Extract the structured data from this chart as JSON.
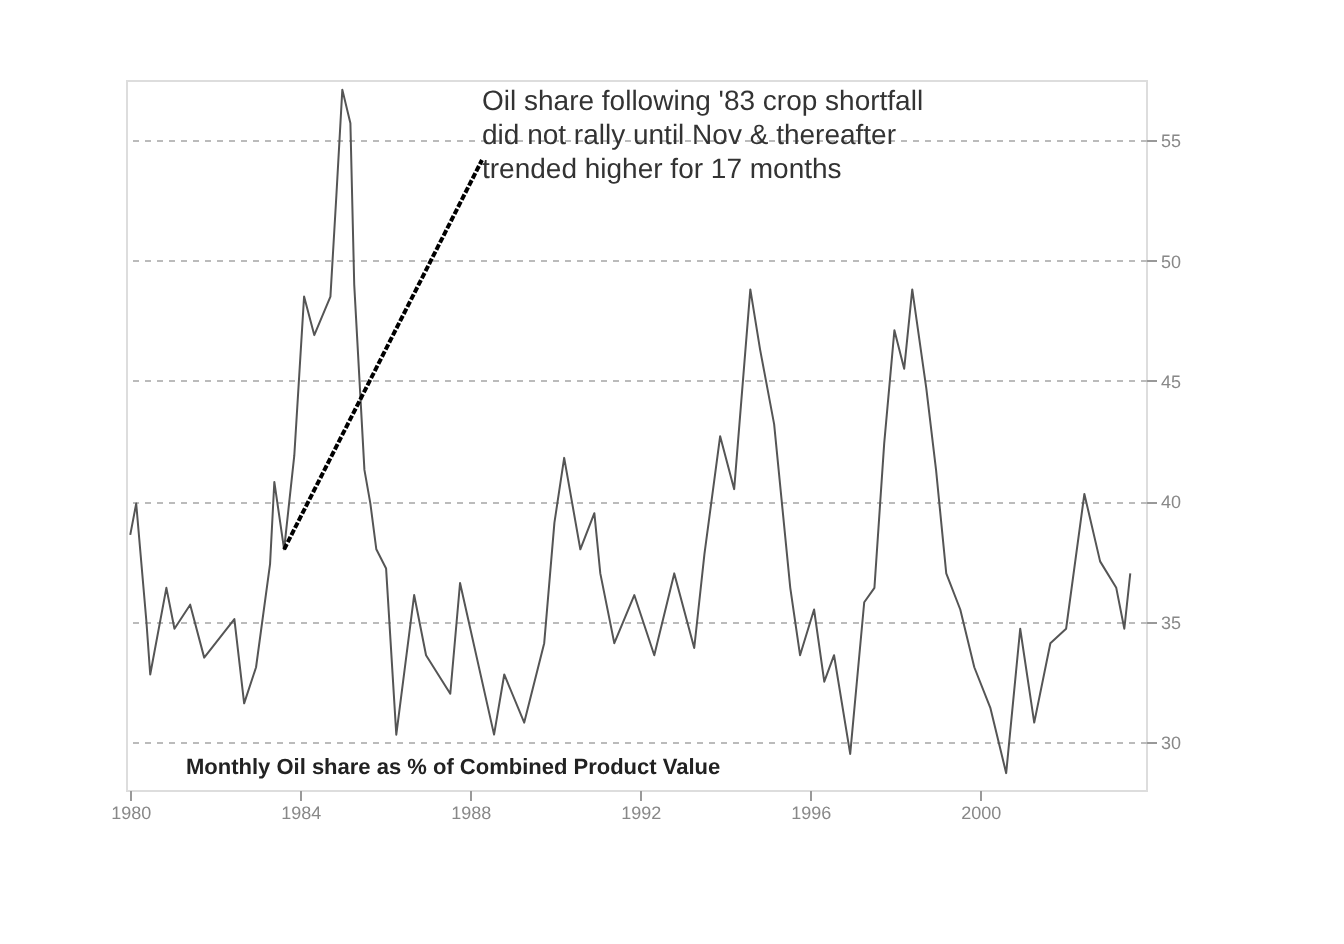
{
  "chart_data": {
    "type": "line",
    "color": "#555555",
    "x": [
      1980.0,
      1980.14,
      1980.38,
      1980.47,
      1980.85,
      1981.04,
      1981.41,
      1981.74,
      1982.45,
      1982.68,
      1982.96,
      1983.29,
      1983.39,
      1983.62,
      1983.86,
      1984.09,
      1984.33,
      1984.71,
      1984.85,
      1984.99,
      1985.18,
      1985.27,
      1985.51,
      1985.65,
      1985.79,
      1986.02,
      1986.26,
      1986.68,
      1986.96,
      1987.53,
      1987.76,
      1988.56,
      1988.8,
      1989.27,
      1989.74,
      1989.98,
      1990.21,
      1990.59,
      1990.92,
      1991.06,
      1991.39,
      1991.86,
      1992.33,
      1992.8,
      1993.27,
      1993.51,
      1993.88,
      1994.21,
      1994.59,
      1994.82,
      1995.15,
      1995.53,
      1995.76,
      1996.09,
      1996.33,
      1996.56,
      1996.94,
      1997.27,
      1997.51,
      1997.74,
      1997.98,
      1998.21,
      1998.4,
      1998.73,
      1998.96,
      1999.2,
      1999.53,
      1999.86,
      2000.24,
      2000.61,
      2000.94,
      2001.27,
      2001.65,
      2002.02,
      2002.45,
      2002.82,
      2003.2,
      2003.39,
      2003.53
    ],
    "values": [
      38.6,
      39.9,
      35.0,
      32.8,
      36.4,
      34.7,
      35.7,
      33.5,
      35.1,
      31.6,
      33.1,
      37.4,
      40.8,
      38.0,
      41.9,
      48.5,
      46.9,
      48.5,
      52.7,
      57.1,
      55.7,
      49.0,
      41.3,
      39.9,
      38.0,
      37.2,
      30.3,
      36.1,
      33.6,
      32.0,
      36.6,
      30.3,
      32.8,
      30.8,
      34.1,
      39.1,
      41.8,
      38.0,
      39.5,
      37.0,
      34.1,
      36.1,
      33.6,
      37.0,
      33.9,
      37.8,
      42.7,
      40.5,
      48.8,
      46.3,
      43.2,
      36.4,
      33.6,
      35.5,
      32.5,
      33.6,
      29.5,
      35.8,
      36.4,
      42.4,
      47.1,
      45.5,
      48.8,
      44.7,
      41.3,
      37.0,
      35.5,
      33.1,
      31.4,
      28.7,
      34.7,
      30.8,
      34.1,
      34.7,
      40.3,
      37.5,
      36.4,
      34.7,
      37.0
    ],
    "xlim": [
      1979.9,
      2003.9
    ],
    "xticks": [
      1980,
      1984,
      1988,
      1992,
      1996,
      2000
    ],
    "ylim": [
      28,
      57.5
    ],
    "yticks": [
      30,
      35,
      40,
      45,
      50,
      55
    ],
    "grid": "y",
    "line_style": "solid",
    "marker": "none",
    "annotations": [
      {
        "text": "Oil share following '83 crop shortfall did not rally until Nov & thereafter trended higher for 17 months",
        "x": 1983.62,
        "y": 38.0
      },
      "Monthly Oil share as % of Combined Product Value"
    ]
  }
}
